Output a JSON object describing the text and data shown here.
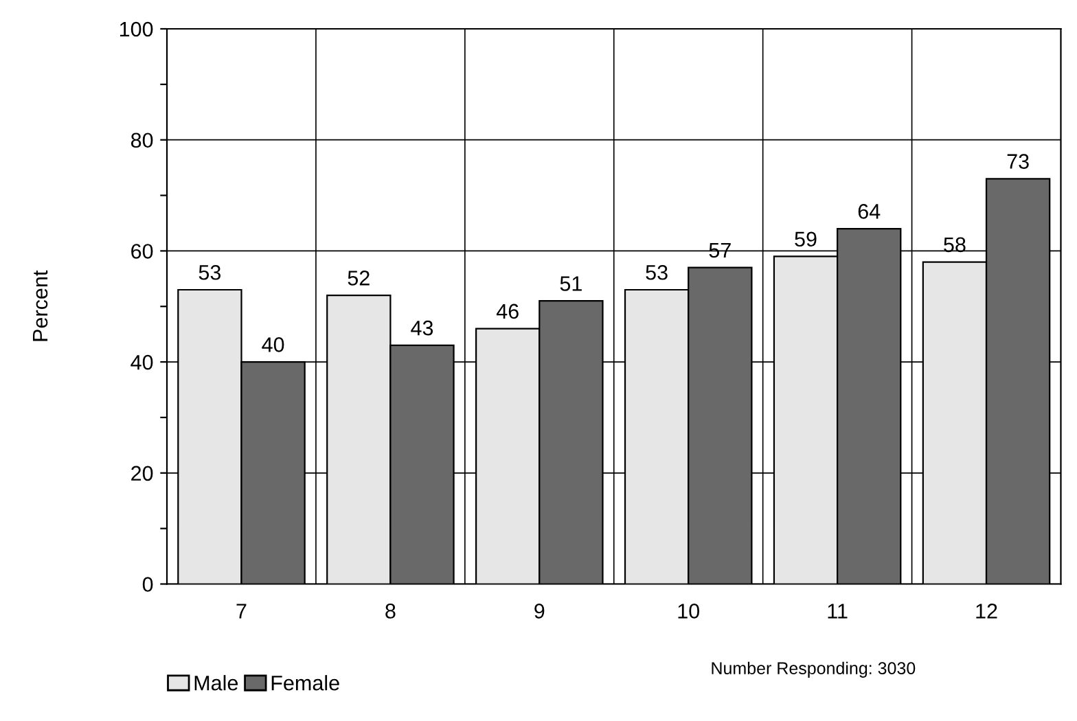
{
  "chart_data": {
    "type": "bar",
    "ylabel": "Percent",
    "categories": [
      "7",
      "8",
      "9",
      "10",
      "11",
      "12"
    ],
    "series": [
      {
        "name": "Male",
        "color": "#e6e6e6",
        "values": [
          53,
          52,
          46,
          53,
          59,
          58
        ]
      },
      {
        "name": "Female",
        "color": "#696969",
        "values": [
          40,
          43,
          51,
          57,
          64,
          73
        ]
      }
    ],
    "ylim": [
      0,
      100
    ],
    "yticks": [
      0,
      {
        "value": 10,
        "label": null
      },
      20,
      {
        "value": 30,
        "label": null
      },
      40,
      {
        "value": 50,
        "label": null
      },
      60,
      {
        "value": 70,
        "label": null
      },
      80,
      {
        "value": 90,
        "label": null
      },
      100
    ],
    "grid": true,
    "legend": "bottom left",
    "data_labels": true,
    "annotations": [
      "Number Responding: 3030"
    ]
  }
}
